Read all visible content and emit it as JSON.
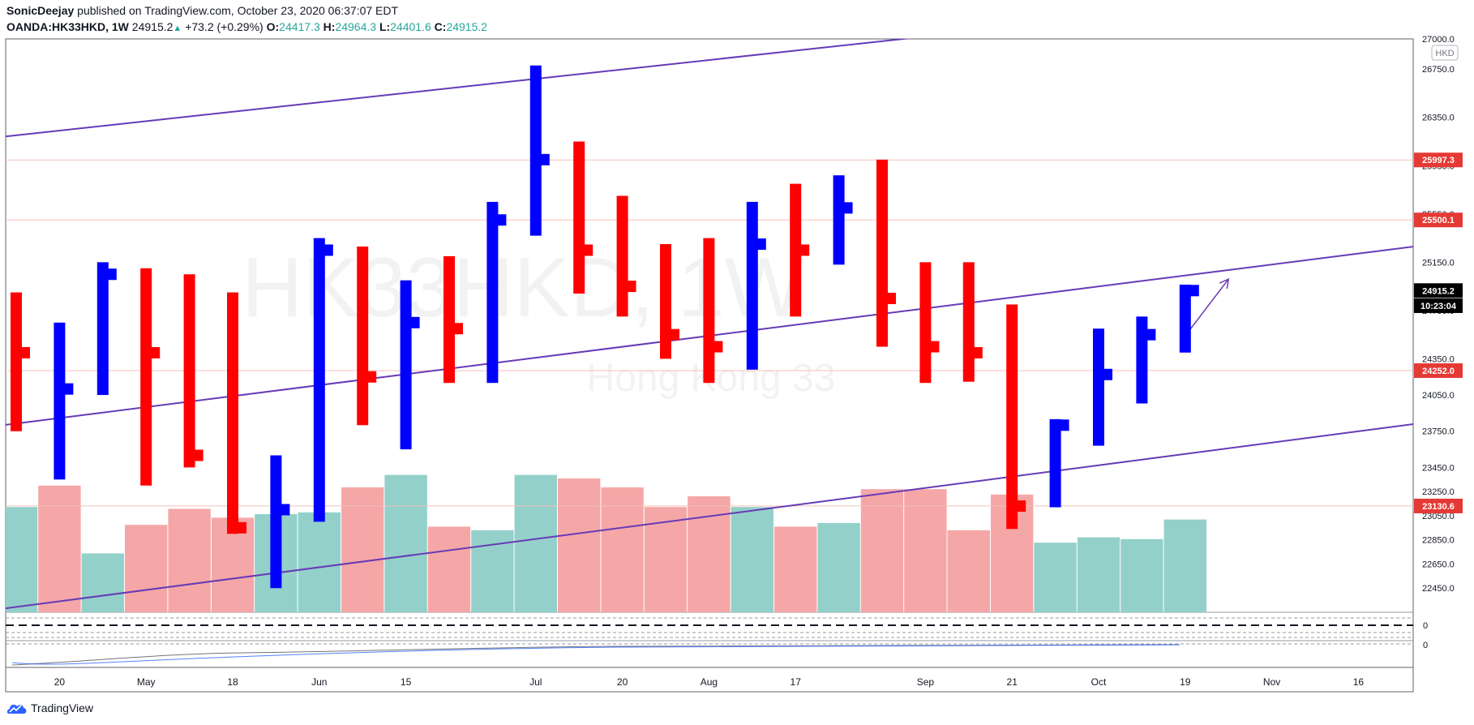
{
  "header": {
    "author": "SonicDeejay",
    "published_text": "published on TradingView.com, October 23, 2020 06:37:07 EDT",
    "symbol": "OANDA:HK33HKD, 1W",
    "last": "24915.2",
    "change": "+73.2 (+0.29%)",
    "o_label": "O:",
    "o_value": "24417.3",
    "h_label": "H:",
    "h_value": "24964.3",
    "l_label": "L:",
    "l_value": "24401.6",
    "c_label": "C:",
    "c_value": "24915.2"
  },
  "watermark": {
    "symbol": "HK33HKD, 1W",
    "name": "Hong Kong 33"
  },
  "currency_badge": "HKD",
  "footer": {
    "brand": "TradingView"
  },
  "colors": {
    "up": "#0000ff",
    "down": "#ff0000",
    "vol_up": "#93d0ca",
    "vol_down": "#f5a7a7",
    "trend": "#673ab7",
    "hline": "#f5c0b8"
  },
  "chart_data": {
    "type": "ohlc-bar",
    "ylim": [
      22250,
      27000
    ],
    "y_ticks": [
      "27000.0",
      "26750.0",
      "26350.0",
      "25950.0",
      "25550.0",
      "25150.0",
      "24750.0",
      "24350.0",
      "24050.0",
      "23750.0",
      "23450.0",
      "23250.0",
      "23050.0",
      "22850.0",
      "22650.0",
      "22450.0"
    ],
    "x_ticks": [
      "20",
      "May",
      "18",
      "Jun",
      "15",
      "Jul",
      "20",
      "Aug",
      "17",
      "Sep",
      "21",
      "Oct",
      "19",
      "Nov",
      "16"
    ],
    "price_labels": [
      {
        "text": "25997.3",
        "value": 25997.3,
        "kind": "level"
      },
      {
        "text": "25500.1",
        "value": 25500.1,
        "kind": "level"
      },
      {
        "text": "24915.2",
        "value": 24915.2,
        "kind": "last"
      },
      {
        "text": "10:23:04",
        "value": 24790,
        "kind": "timer"
      },
      {
        "text": "24252.0",
        "value": 24252.0,
        "kind": "level"
      },
      {
        "text": "23130.6",
        "value": 23130.6,
        "kind": "level"
      }
    ],
    "hlines": [
      25997.3,
      25500.1,
      24252.0,
      23130.6
    ],
    "trendlines": [
      {
        "x1": -0.3,
        "y1": 26190,
        "x2": 21.0,
        "y2": 27020
      },
      {
        "x1": -0.3,
        "y1": 23800,
        "x2": 32.5,
        "y2": 25290
      },
      {
        "x1": -0.3,
        "y1": 22280,
        "x2": 32.5,
        "y2": 23820
      }
    ],
    "arrow": {
      "x1": 27.0,
      "y1": 24540,
      "x2": 28.0,
      "y2": 25010
    },
    "bars": [
      {
        "o": 24500,
        "h": 24900,
        "l": 23750,
        "c": 24400
      },
      {
        "o": 24000,
        "h": 24650,
        "l": 23350,
        "c": 24100
      },
      {
        "o": 24100,
        "h": 25150,
        "l": 24050,
        "c": 25050
      },
      {
        "o": 25050,
        "h": 25100,
        "l": 23300,
        "c": 24400
      },
      {
        "o": 25050,
        "h": 25050,
        "l": 23450,
        "c": 23550
      },
      {
        "o": 24900,
        "h": 24900,
        "l": 22900,
        "c": 22950
      },
      {
        "o": 22900,
        "h": 23550,
        "l": 22450,
        "c": 23100
      },
      {
        "o": 23100,
        "h": 25350,
        "l": 23000,
        "c": 25250
      },
      {
        "o": 25300,
        "h": 25280,
        "l": 23800,
        "c": 24200
      },
      {
        "o": 24200,
        "h": 25000,
        "l": 23600,
        "c": 24650
      },
      {
        "o": 25200,
        "h": 25200,
        "l": 24150,
        "c": 24600
      },
      {
        "o": 24600,
        "h": 25650,
        "l": 24150,
        "c": 25500
      },
      {
        "o": 25500,
        "h": 26780,
        "l": 25370,
        "c": 26000
      },
      {
        "o": 26150,
        "h": 26150,
        "l": 24890,
        "c": 25250
      },
      {
        "o": 25700,
        "h": 25700,
        "l": 24700,
        "c": 24950
      },
      {
        "o": 25300,
        "h": 25300,
        "l": 24350,
        "c": 24550
      },
      {
        "o": 25350,
        "h": 25350,
        "l": 24150,
        "c": 24450
      },
      {
        "o": 24450,
        "h": 25650,
        "l": 24260,
        "c": 25300
      },
      {
        "o": 25800,
        "h": 25800,
        "l": 24700,
        "c": 25250
      },
      {
        "o": 25150,
        "h": 25870,
        "l": 25130,
        "c": 25600
      },
      {
        "o": 26000,
        "h": 26000,
        "l": 24450,
        "c": 24850
      },
      {
        "o": 25150,
        "h": 25150,
        "l": 24150,
        "c": 24450
      },
      {
        "o": 25150,
        "h": 25150,
        "l": 24160,
        "c": 24400
      },
      {
        "o": 24800,
        "h": 24800,
        "l": 22940,
        "c": 23130
      },
      {
        "o": 23150,
        "h": 23850,
        "l": 23120,
        "c": 23800
      },
      {
        "o": 23650,
        "h": 24600,
        "l": 23630,
        "c": 24220
      },
      {
        "o": 24220,
        "h": 24700,
        "l": 23980,
        "c": 24550
      },
      {
        "o": 24417.3,
        "h": 24964.3,
        "l": 24401.6,
        "c": 24915.2
      }
    ],
    "volume": [
      {
        "v": 0.59,
        "dir": "up"
      },
      {
        "v": 0.71,
        "dir": "down"
      },
      {
        "v": 0.33,
        "dir": "up"
      },
      {
        "v": 0.49,
        "dir": "down"
      },
      {
        "v": 0.58,
        "dir": "down"
      },
      {
        "v": 0.53,
        "dir": "down"
      },
      {
        "v": 0.55,
        "dir": "up"
      },
      {
        "v": 0.56,
        "dir": "up"
      },
      {
        "v": 0.7,
        "dir": "down"
      },
      {
        "v": 0.77,
        "dir": "up"
      },
      {
        "v": 0.48,
        "dir": "down"
      },
      {
        "v": 0.46,
        "dir": "up"
      },
      {
        "v": 0.77,
        "dir": "up"
      },
      {
        "v": 0.75,
        "dir": "down"
      },
      {
        "v": 0.7,
        "dir": "down"
      },
      {
        "v": 0.59,
        "dir": "down"
      },
      {
        "v": 0.65,
        "dir": "down"
      },
      {
        "v": 0.59,
        "dir": "up"
      },
      {
        "v": 0.48,
        "dir": "down"
      },
      {
        "v": 0.5,
        "dir": "up"
      },
      {
        "v": 0.69,
        "dir": "down"
      },
      {
        "v": 0.69,
        "dir": "down"
      },
      {
        "v": 0.46,
        "dir": "down"
      },
      {
        "v": 0.66,
        "dir": "down"
      },
      {
        "v": 0.39,
        "dir": "up"
      },
      {
        "v": 0.42,
        "dir": "up"
      },
      {
        "v": 0.41,
        "dir": "up"
      },
      {
        "v": 0.52,
        "dir": "up"
      }
    ],
    "indicator_pane_labels": [
      "0",
      "0"
    ]
  }
}
